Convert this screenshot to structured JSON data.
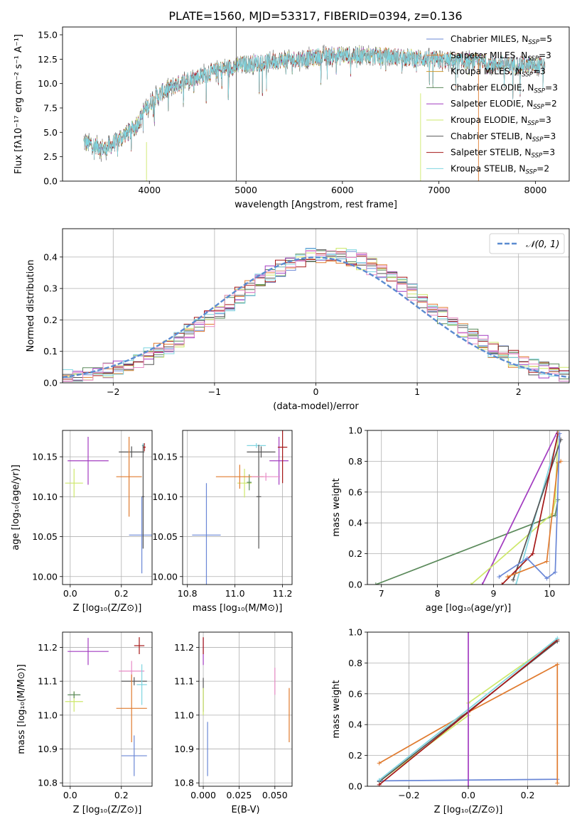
{
  "title": "PLATE=1560, MJD=53317, FIBERID=0394, z=0.136",
  "colors": {
    "blue": "#6a87d6",
    "orange": "#e07b2f",
    "olive": "#cf9a2e",
    "green": "#5b8a5b",
    "purple": "#a23bc0",
    "yellow": "#cde86a",
    "dark": "#555555",
    "red": "#a51818",
    "cyan": "#7fd5e0",
    "pink": "#e88bc6",
    "ref": "#5b8bd0"
  },
  "chart_data": [
    {
      "id": "spectrum",
      "type": "line",
      "xlabel": "wavelength [Angstrom, rest frame]",
      "ylabel": "Flux [fλ10⁻¹⁷ erg cm⁻² s⁻¹ A⁻¹]",
      "xlim": [
        3100,
        8350
      ],
      "ylim": [
        0,
        15.8
      ],
      "xticks": [
        "4000",
        "5000",
        "6000",
        "7000",
        "8000"
      ],
      "yticks": [
        "0.0",
        "2.5",
        "5.0",
        "7.5",
        "10.0",
        "12.5",
        "15.0"
      ],
      "continuum": {
        "x": [
          3320,
          3450,
          3550,
          3650,
          3750,
          3850,
          3950,
          4050,
          4200,
          4400,
          4600,
          4800,
          5000,
          5200,
          5400,
          5600,
          5800,
          6000,
          6200,
          6400,
          6600,
          6800,
          7000,
          7200,
          7400,
          7600,
          7800,
          8000,
          8100
        ],
        "y": [
          4.0,
          3.6,
          3.3,
          4.0,
          4.8,
          5.5,
          7.2,
          8.5,
          9.5,
          10.4,
          11.0,
          11.6,
          12.0,
          12.2,
          12.4,
          12.5,
          12.8,
          12.9,
          12.9,
          12.8,
          12.7,
          12.6,
          12.4,
          12.3,
          12.2,
          12.0,
          11.9,
          11.8,
          11.8
        ]
      },
      "legend": [
        {
          "label": "Chabrier MILES, N",
          "sub": "SSP",
          "suffix": "=5",
          "color": "blue"
        },
        {
          "label": "Salpeter MILES, N",
          "sub": "SSP",
          "suffix": "=3",
          "color": "orange"
        },
        {
          "label": "Kroupa MILES, N",
          "sub": "SSP",
          "suffix": "=3",
          "color": "olive"
        },
        {
          "label": "Chabrier ELODIE, N",
          "sub": "SSP",
          "suffix": "=3",
          "color": "green"
        },
        {
          "label": "Salpeter ELODIE, N",
          "sub": "SSP",
          "suffix": "=2",
          "color": "purple"
        },
        {
          "label": "Kroupa ELODIE, N",
          "sub": "SSP",
          "suffix": "=3",
          "color": "yellow"
        },
        {
          "label": "Chabrier STELIB, N",
          "sub": "SSP",
          "suffix": "=3",
          "color": "dark"
        },
        {
          "label": "Salpeter STELIB, N",
          "sub": "SSP",
          "suffix": "=3",
          "color": "red"
        },
        {
          "label": "Kroupa STELIB, N",
          "sub": "SSP",
          "suffix": "=2",
          "color": "cyan"
        }
      ]
    },
    {
      "id": "residuals",
      "type": "histogram",
      "xlabel": "(data-model)/error",
      "ylabel": "Normed distribution",
      "xlim": [
        -2.5,
        2.5
      ],
      "ylim": [
        0,
        0.49
      ],
      "xticks": [
        "−2",
        "−1",
        "0",
        "1",
        "2"
      ],
      "yticks": [
        "0.0",
        "0.1",
        "0.2",
        "0.3",
        "0.4"
      ],
      "reference_label": "𝒩(0, 1)",
      "reference": {
        "type": "normal",
        "mean": 0,
        "sigma": 1
      },
      "series_colors": [
        "blue",
        "orange",
        "green",
        "purple",
        "yellow",
        "dark",
        "red",
        "cyan",
        "pink"
      ]
    },
    {
      "id": "z-age",
      "type": "scatter",
      "xlabel": "Z [log₁₀(Z/Z⊙)]",
      "ylabel": "age  [log₁₀(age/yr)]",
      "xlim": [
        -0.03,
        0.32
      ],
      "ylim": [
        9.99,
        10.183
      ],
      "xticks": [
        "0.0",
        "0.2"
      ],
      "yticks": [
        "10.00",
        "10.05",
        "10.10",
        "10.15"
      ],
      "points": [
        {
          "x": 0.07,
          "xerr": 0.08,
          "y": 10.145,
          "yerr": 0.03,
          "color": "purple"
        },
        {
          "x": 0.015,
          "xerr": 0.035,
          "y": 10.117,
          "yerr": 0.018,
          "color": "yellow"
        },
        {
          "x": 0.24,
          "xerr": 0.05,
          "y": 10.156,
          "yerr": 0.007,
          "color": "dark"
        },
        {
          "x": 0.29,
          "xerr": 0.005,
          "y": 10.162,
          "yerr": 0.005,
          "color": "red"
        },
        {
          "x": 0.285,
          "xerr": 0.005,
          "y": 10.164,
          "yerr": 0.003,
          "color": "cyan"
        },
        {
          "x": 0.23,
          "xerr": 0.05,
          "y": 10.125,
          "yerr": 0.05,
          "color": "orange"
        },
        {
          "x": 0.28,
          "xerr": 0.05,
          "y": 10.052,
          "yerr": 0.048,
          "color": "blue"
        },
        {
          "x": 0.285,
          "xerr": 0.005,
          "y": 10.1,
          "yerr": 0.065,
          "color": "dark"
        }
      ]
    },
    {
      "id": "mass-age",
      "type": "scatter",
      "xlabel": "mass [log₁₀(M/M⊙)]",
      "xlim": [
        10.78,
        11.24
      ],
      "ylim": [
        9.99,
        10.183
      ],
      "xticks": [
        "10.8",
        "11.0",
        "11.2"
      ],
      "yticks": [
        "10.00",
        "10.05",
        "10.10",
        "10.15"
      ],
      "points": [
        {
          "x": 11.185,
          "xerr": 0.04,
          "y": 10.145,
          "yerr": 0.03,
          "color": "purple"
        },
        {
          "x": 11.04,
          "xerr": 0.03,
          "y": 10.117,
          "yerr": 0.018,
          "color": "yellow"
        },
        {
          "x": 11.06,
          "xerr": 0.01,
          "y": 10.118,
          "yerr": 0.01,
          "color": "green"
        },
        {
          "x": 11.11,
          "xerr": 0.06,
          "y": 10.156,
          "yerr": 0.007,
          "color": "dark"
        },
        {
          "x": 11.2,
          "xerr": 0.02,
          "y": 10.162,
          "yerr": 0.045,
          "color": "red"
        },
        {
          "x": 11.09,
          "xerr": 0.04,
          "y": 10.164,
          "yerr": 0.003,
          "color": "cyan"
        },
        {
          "x": 11.02,
          "xerr": 0.1,
          "y": 10.125,
          "yerr": 0.015,
          "color": "orange"
        },
        {
          "x": 10.88,
          "xerr": 0.06,
          "y": 10.052,
          "yerr": 0.065,
          "color": "blue"
        },
        {
          "x": 11.1,
          "xerr": 0.01,
          "y": 10.1,
          "yerr": 0.065,
          "color": "dark"
        },
        {
          "x": 11.13,
          "xerr": 0.06,
          "y": 10.125,
          "yerr": 0.005,
          "color": "pink"
        }
      ]
    },
    {
      "id": "age-weight",
      "type": "line",
      "xlabel": "age  [log₁₀(age/yr)]",
      "ylabel": "mass weight",
      "xlim": [
        6.75,
        10.35
      ],
      "ylim": [
        0,
        1.0
      ],
      "xticks": [
        "7",
        "8",
        "9",
        "10"
      ],
      "yticks": [
        "0.0",
        "0.2",
        "0.4",
        "0.6",
        "0.8",
        "1.0"
      ],
      "series": [
        {
          "color": "green",
          "x": [
            6.9,
            10.1,
            10.15
          ],
          "y": [
            0.0,
            0.45,
            0.55
          ]
        },
        {
          "color": "purple",
          "x": [
            8.8,
            10.15
          ],
          "y": [
            0.0,
            1.0
          ]
        },
        {
          "color": "yellow",
          "x": [
            8.6,
            10.05,
            10.1,
            10.15
          ],
          "y": [
            0.0,
            0.46,
            0.54,
            1.0
          ]
        },
        {
          "color": "cyan",
          "x": [
            9.4,
            10.15
          ],
          "y": [
            0.0,
            0.96
          ]
        },
        {
          "color": "dark",
          "x": [
            9.35,
            10.2
          ],
          "y": [
            0.03,
            0.94
          ]
        },
        {
          "color": "red",
          "x": [
            9.15,
            9.7,
            10.15
          ],
          "y": [
            0.0,
            0.2,
            0.98
          ]
        },
        {
          "color": "orange",
          "x": [
            9.25,
            9.95,
            10.15,
            10.2
          ],
          "y": [
            0.05,
            0.15,
            0.79,
            0.8
          ]
        },
        {
          "color": "blue",
          "x": [
            9.1,
            9.6,
            9.95,
            10.1,
            10.18
          ],
          "y": [
            0.05,
            0.17,
            0.04,
            0.08,
            0.98
          ]
        }
      ]
    },
    {
      "id": "z-mass",
      "type": "scatter",
      "xlabel": "Z [log₁₀(Z/Z⊙)]",
      "ylabel": "mass [log₁₀(M/M⊙)]",
      "xlim": [
        -0.03,
        0.32
      ],
      "ylim": [
        10.79,
        11.245
      ],
      "xticks": [
        "0.0",
        "0.2"
      ],
      "yticks": [
        "10.8",
        "10.9",
        "11.0",
        "11.1",
        "11.2"
      ],
      "points": [
        {
          "x": 0.07,
          "xerr": 0.08,
          "y": 11.188,
          "yerr": 0.04,
          "color": "purple"
        },
        {
          "x": 0.015,
          "xerr": 0.035,
          "y": 11.04,
          "yerr": 0.03,
          "color": "yellow"
        },
        {
          "x": 0.015,
          "xerr": 0.025,
          "y": 11.06,
          "yerr": 0.01,
          "color": "green"
        },
        {
          "x": 0.27,
          "xerr": 0.02,
          "y": 11.205,
          "yerr": 0.025,
          "color": "red"
        },
        {
          "x": 0.24,
          "xerr": 0.05,
          "y": 11.13,
          "yerr": 0.03,
          "color": "pink"
        },
        {
          "x": 0.25,
          "xerr": 0.05,
          "y": 11.1,
          "yerr": 0.012,
          "color": "dark"
        },
        {
          "x": 0.28,
          "xerr": 0.02,
          "y": 11.09,
          "yerr": 0.06,
          "color": "cyan"
        },
        {
          "x": 0.24,
          "xerr": 0.06,
          "y": 11.02,
          "yerr": 0.1,
          "color": "orange"
        },
        {
          "x": 0.25,
          "xerr": 0.05,
          "y": 10.88,
          "yerr": 0.06,
          "color": "blue"
        }
      ]
    },
    {
      "id": "ebv-mass",
      "type": "scatter",
      "xlabel": "E(B-V)",
      "xlim": [
        -0.003,
        0.062
      ],
      "ylim": [
        10.79,
        11.245
      ],
      "xticks": [
        "0.000",
        "0.025",
        "0.050"
      ],
      "yticks": [
        "10.8",
        "10.9",
        "11.0",
        "11.1",
        "11.2"
      ],
      "points": [
        {
          "x": 0.0,
          "xerr": 0.0,
          "y": 11.188,
          "yerr": 0.04,
          "color": "purple"
        },
        {
          "x": 0.0,
          "xerr": 0.0,
          "y": 11.205,
          "yerr": 0.025,
          "color": "red"
        },
        {
          "x": 0.0,
          "xerr": 0.0,
          "y": 11.06,
          "yerr": 0.05,
          "color": "dark"
        },
        {
          "x": 0.0,
          "xerr": 0.0,
          "y": 11.04,
          "yerr": 0.04,
          "color": "yellow"
        },
        {
          "x": 0.003,
          "xerr": 0.0,
          "y": 10.9,
          "yerr": 0.08,
          "color": "blue"
        },
        {
          "x": 0.05,
          "xerr": 0.0,
          "y": 11.1,
          "yerr": 0.04,
          "color": "pink"
        },
        {
          "x": 0.06,
          "xerr": 0.0,
          "y": 11.0,
          "yerr": 0.08,
          "color": "orange"
        }
      ]
    },
    {
      "id": "z-weight",
      "type": "line",
      "xlabel": "Z [log₁₀(Z/Z⊙)]",
      "ylabel": "mass weight",
      "xlim": [
        -0.34,
        0.34
      ],
      "ylim": [
        0,
        1.0
      ],
      "xticks": [
        "−0.2",
        "0.0",
        "0.2"
      ],
      "yticks": [
        "0.0",
        "0.2",
        "0.4",
        "0.6",
        "0.8",
        "1.0"
      ],
      "series": [
        {
          "color": "blue",
          "x": [
            -0.3,
            0.3
          ],
          "y": [
            0.035,
            0.045
          ]
        },
        {
          "color": "orange",
          "x": [
            -0.3,
            0.0,
            0.3,
            0.3
          ],
          "y": [
            0.15,
            0.48,
            0.79,
            0.02
          ]
        },
        {
          "color": "yellow",
          "x": [
            -0.3,
            0.0,
            0.0,
            0.3
          ],
          "y": [
            0.03,
            0.46,
            0.54,
            0.95
          ]
        },
        {
          "color": "dark",
          "x": [
            -0.3,
            0.3
          ],
          "y": [
            0.03,
            0.94
          ]
        },
        {
          "color": "red",
          "x": [
            -0.3,
            0.3
          ],
          "y": [
            0.01,
            0.95
          ]
        },
        {
          "color": "cyan",
          "x": [
            -0.3,
            0.3
          ],
          "y": [
            0.04,
            0.96
          ]
        },
        {
          "color": "purple",
          "x": [
            0.0,
            0.0
          ],
          "y": [
            0.0,
            1.0
          ]
        }
      ]
    }
  ]
}
